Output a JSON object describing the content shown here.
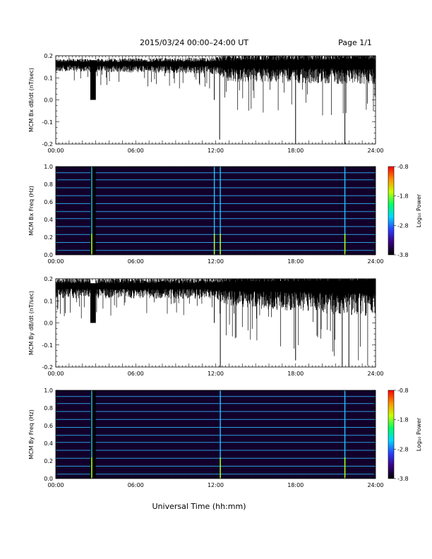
{
  "header": {
    "title": "2015/03/24  00:00–24:00 UT",
    "page": "Page 1/1"
  },
  "x_axis": {
    "ticks": [
      "00:00",
      "06:00",
      "12:00",
      "18:00",
      "24:00"
    ],
    "label": "Universal Time (hh:mm)"
  },
  "colorbar": {
    "ticks": [
      "-0.8",
      "-1.8",
      "-2.8",
      "-3.8"
    ],
    "label": "Log₁₀ Power",
    "colors": [
      "#000000",
      "#3a0080",
      "#2a3fff",
      "#00d6ff",
      "#00ff66",
      "#c8ff00",
      "#ff9000",
      "#ff0000"
    ]
  },
  "chart_data": [
    {
      "type": "line",
      "ylabel": "MCM Bx dB/dt (nT/sec)",
      "ylim": [
        -0.2,
        0.2
      ],
      "yticks": [
        "0.2",
        "0.1",
        "0.0",
        "-0.1",
        "-0.2"
      ],
      "xlim_hours": [
        0,
        24
      ],
      "baseline": 0.165,
      "noise_amplitude_by_hour": [
        [
          0,
          0.03
        ],
        [
          12,
          0.04
        ],
        [
          13,
          0.07
        ],
        [
          24,
          0.08
        ]
      ],
      "gaps": [
        {
          "start_hour": 2.6,
          "end_hour": 3.0,
          "value": 0.0
        }
      ],
      "spikes": [
        {
          "x_hour": 11.9,
          "y": 0.0
        },
        {
          "x_hour": 12.3,
          "y": -0.18
        },
        {
          "x_hour": 18.0,
          "y": -0.2
        },
        {
          "x_hour": 21.7,
          "y": -0.2
        }
      ]
    },
    {
      "type": "heatmap",
      "ylabel": "MCM Bx Freq (Hz)",
      "ylim": [
        0.0,
        1.0
      ],
      "yticks": [
        "1.0",
        "0.8",
        "0.6",
        "0.4",
        "0.2",
        "0.0"
      ],
      "xlim_hours": [
        0,
        24
      ],
      "zlim": [
        -3.8,
        -0.8
      ],
      "harmonic_lines_hz": [
        0.05,
        0.14,
        0.23,
        0.32,
        0.41,
        0.49,
        0.58,
        0.67,
        0.76,
        0.85,
        0.93
      ],
      "vertical_bands_hours": [
        2.7,
        11.9,
        12.35,
        21.7
      ],
      "dark_gap_hours": [
        2.6,
        3.0
      ]
    },
    {
      "type": "line",
      "ylabel": "MCM By dB/dt (nT/sec)",
      "ylim": [
        -0.2,
        0.2
      ],
      "yticks": [
        "0.2",
        "0.1",
        "0.0",
        "-0.1",
        "-0.2"
      ],
      "xlim_hours": [
        0,
        24
      ],
      "baseline": 0.17,
      "noise_amplitude_by_hour": [
        [
          0,
          0.05
        ],
        [
          12,
          0.05
        ],
        [
          13,
          0.08
        ],
        [
          24,
          0.12
        ]
      ],
      "gaps": [
        {
          "start_hour": 2.6,
          "end_hour": 3.0,
          "value": 0.0
        }
      ],
      "spikes": [
        {
          "x_hour": 11.9,
          "y": 0.0
        },
        {
          "x_hour": 12.35,
          "y": -0.2
        },
        {
          "x_hour": 18.0,
          "y": -0.17
        },
        {
          "x_hour": 21.5,
          "y": -0.2
        },
        {
          "x_hour": 22.0,
          "y": -0.2
        }
      ]
    },
    {
      "type": "heatmap",
      "ylabel": "MCM By Freq (Hz)",
      "ylim": [
        0.0,
        1.0
      ],
      "yticks": [
        "1.0",
        "0.8",
        "0.6",
        "0.4",
        "0.2",
        "0.0"
      ],
      "xlim_hours": [
        0,
        24
      ],
      "zlim": [
        -3.8,
        -0.8
      ],
      "harmonic_lines_hz": [
        0.05,
        0.14,
        0.23,
        0.32,
        0.41,
        0.49,
        0.58,
        0.67,
        0.76,
        0.85,
        0.93
      ],
      "vertical_bands_hours": [
        2.7,
        12.35,
        21.7
      ],
      "dark_gap_hours": [
        2.6,
        3.0
      ]
    }
  ]
}
